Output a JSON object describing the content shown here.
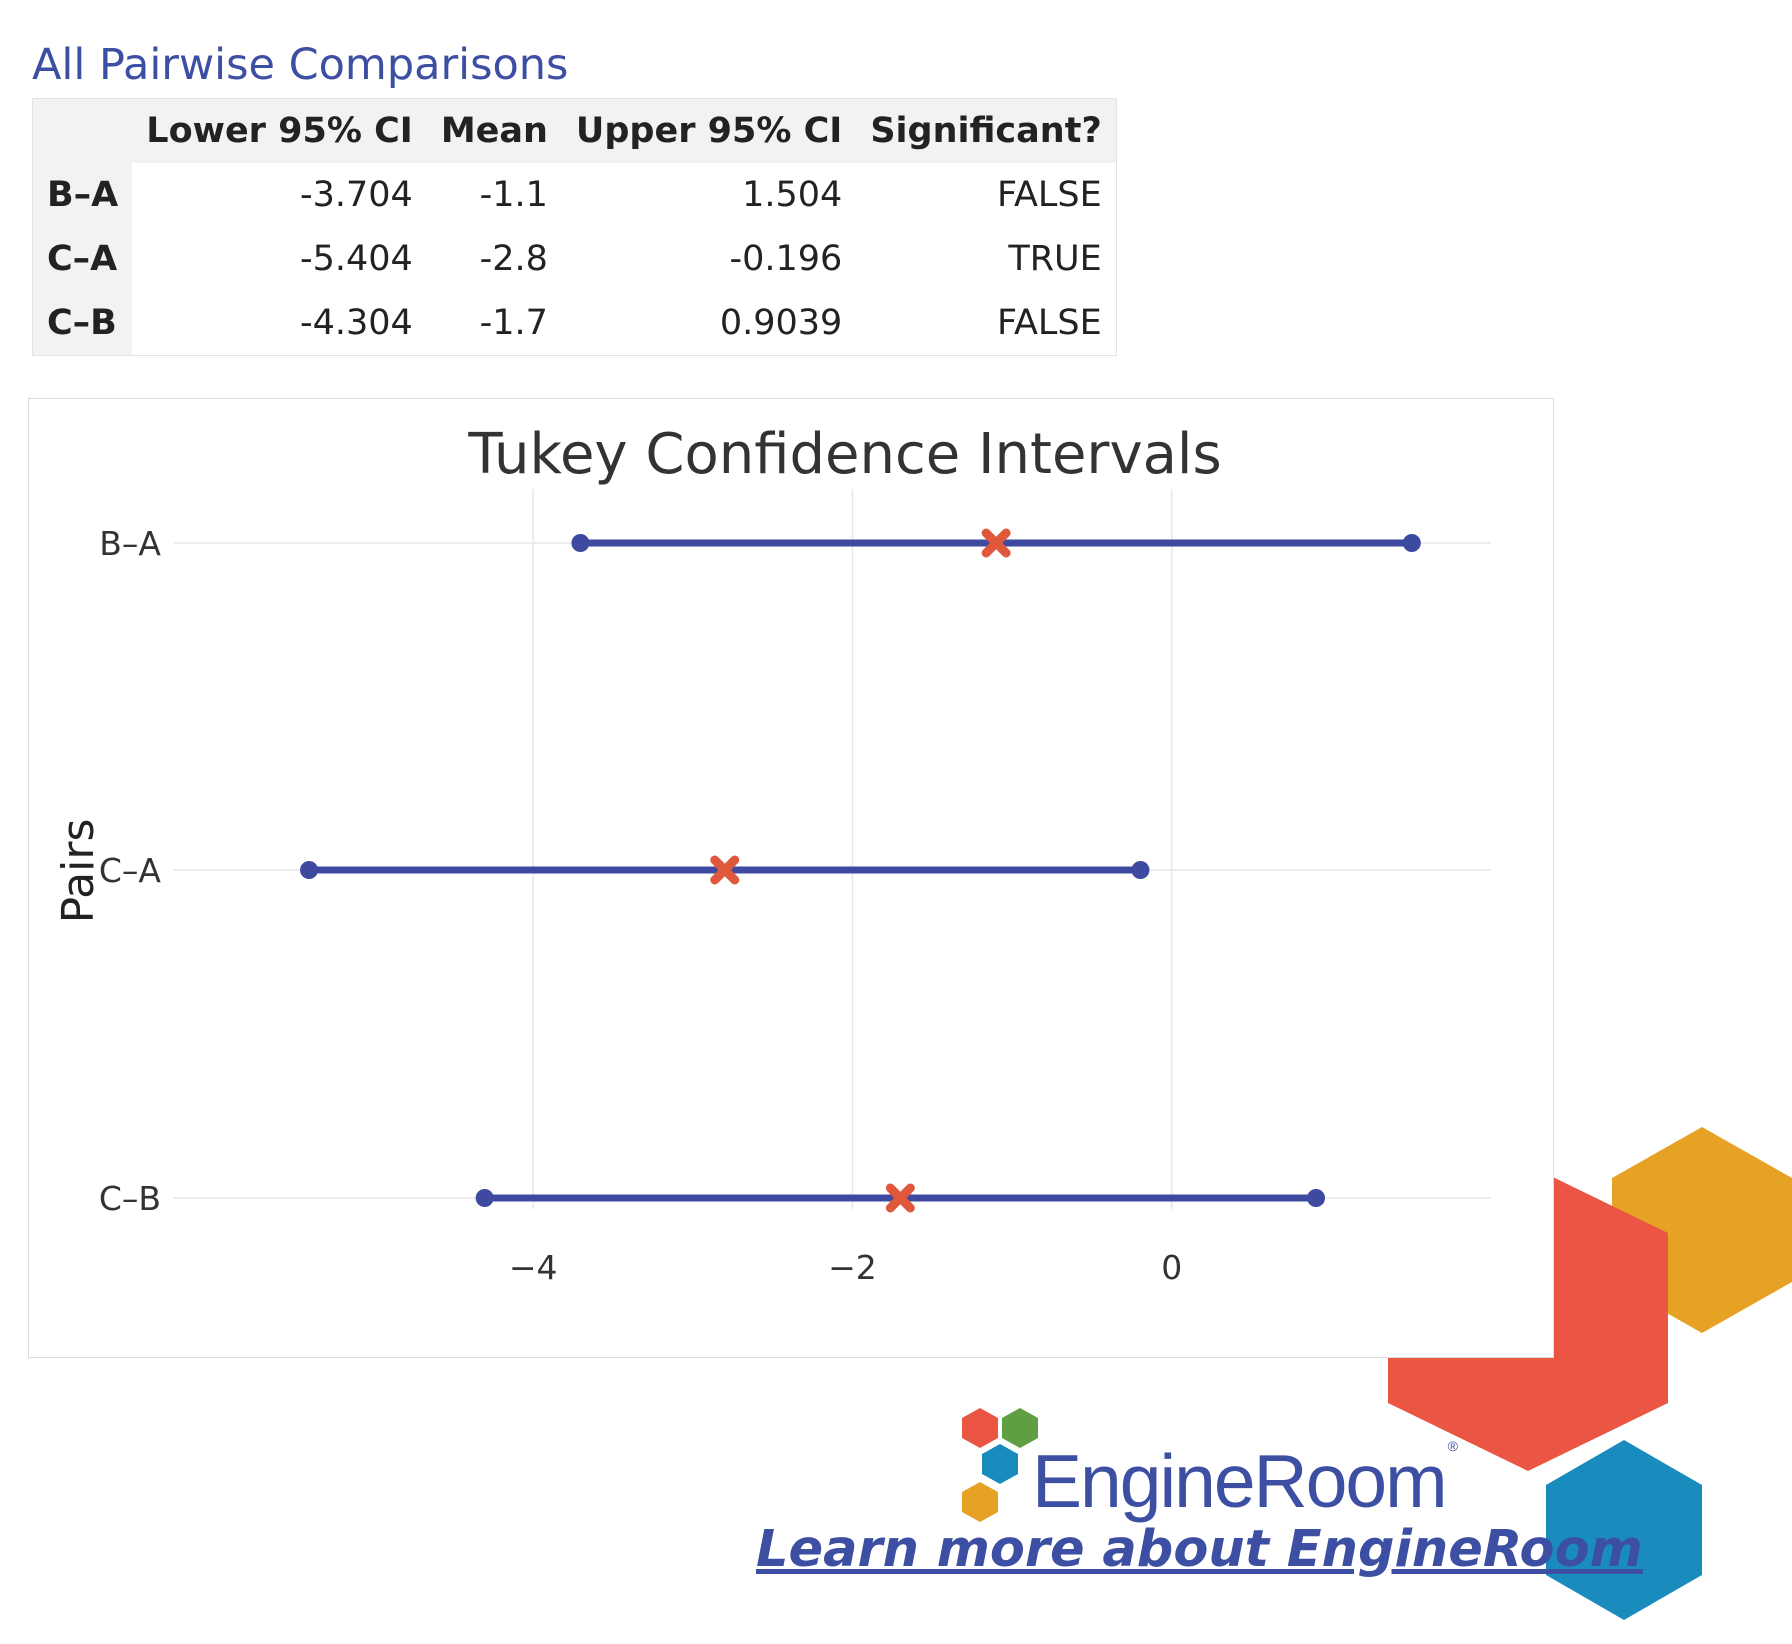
{
  "section_title": "All Pairwise Comparisons",
  "table": {
    "columns": [
      "",
      "Lower 95% CI",
      "Mean",
      "Upper 95% CI",
      "Significant?"
    ],
    "rows": [
      {
        "label": "B–A",
        "lower": "-3.704",
        "mean": "-1.1",
        "upper": "1.504",
        "significant": "FALSE"
      },
      {
        "label": "C–A",
        "lower": "-5.404",
        "mean": "-2.8",
        "upper": "-0.196",
        "significant": "TRUE"
      },
      {
        "label": "C–B",
        "lower": "-4.304",
        "mean": "-1.7",
        "upper": "0.9039",
        "significant": "FALSE"
      }
    ]
  },
  "chart_data": {
    "type": "scatter",
    "title": "Tukey Confidence Intervals",
    "xlabel": "",
    "ylabel": "Pairs",
    "categories": [
      "B–A",
      "C–A",
      "C–B"
    ],
    "lower": [
      -3.704,
      -5.404,
      -4.304
    ],
    "mean": [
      -1.1,
      -2.8,
      -1.7
    ],
    "upper": [
      1.504,
      -0.196,
      0.9039
    ],
    "xlim": [
      -6.25,
      2.0
    ],
    "xticks": [
      -4,
      -2,
      0
    ],
    "xtick_labels": [
      "−4",
      "−2",
      "0"
    ],
    "grid": true,
    "colors": {
      "interval": "#3d4a9f",
      "mean": "#e0583c",
      "grid": "#e6e6e6"
    }
  },
  "brand": {
    "name": "EngineRoom",
    "registered": "®",
    "link_text": "Learn more about EngineRoom",
    "colors": {
      "red": "#ea5643",
      "yellow": "#e6a224",
      "blue": "#1a8bbd",
      "green": "#5f9e43",
      "navy": "#3d4fa3"
    }
  }
}
